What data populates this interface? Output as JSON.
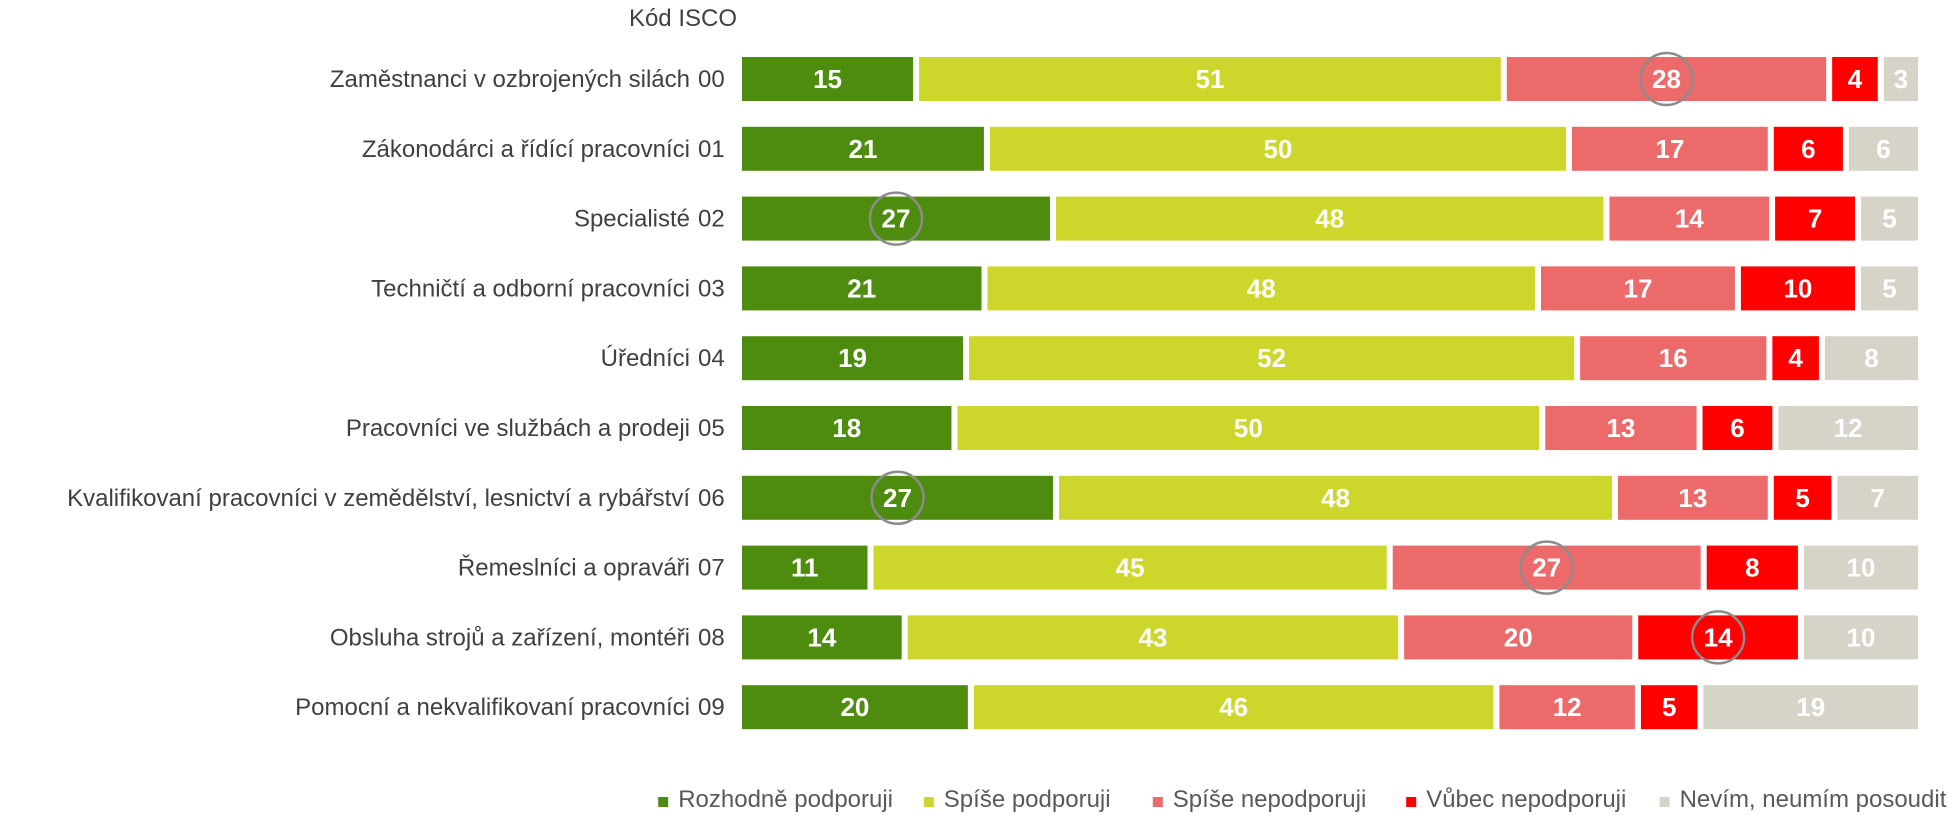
{
  "chart_data": {
    "type": "bar",
    "orientation": "horizontal",
    "stacked": "100%",
    "code_header": "Kód ISCO",
    "categories": [
      {
        "label": "Zaměstnanci v ozbrojených silách",
        "code": "00"
      },
      {
        "label": "Zákonodárci a řídící pracovníci",
        "code": "01"
      },
      {
        "label": "Specialisté",
        "code": "02"
      },
      {
        "label": "Techničtí a odborní pracovníci",
        "code": "03"
      },
      {
        "label": "Úředníci",
        "code": "04"
      },
      {
        "label": "Pracovníci ve službách a prodeji",
        "code": "05"
      },
      {
        "label": "Kvalifikovaní pracovníci v zemědělství, lesnictví a rybářství",
        "code": "06"
      },
      {
        "label": "Řemeslníci a opraváři",
        "code": "07"
      },
      {
        "label": "Obsluha strojů a zařízení, montéři",
        "code": "08"
      },
      {
        "label": "Pomocní a nekvalifikovaní pracovníci",
        "code": "09"
      }
    ],
    "series": [
      {
        "name": "Rozhodně podporuji",
        "color": "#4e8c10",
        "label_color": "#ffffff",
        "values": [
          15,
          21,
          27,
          21,
          19,
          18,
          27,
          11,
          14,
          20
        ]
      },
      {
        "name": "Spíše podporuji",
        "color": "#cdd62a",
        "label_color": "#ffffff",
        "values": [
          51,
          50,
          48,
          48,
          52,
          50,
          48,
          45,
          43,
          46
        ]
      },
      {
        "name": "Spíše nepodporuji",
        "color": "#ec6a6a",
        "label_color": "#ffffff",
        "values": [
          28,
          17,
          14,
          17,
          16,
          13,
          13,
          27,
          20,
          12
        ]
      },
      {
        "name": "Vůbec nepodporuji",
        "color": "#ff0000",
        "label_color": "#ffffff",
        "values": [
          4,
          6,
          7,
          10,
          4,
          6,
          5,
          8,
          14,
          5
        ]
      },
      {
        "name": "Nevím, neumím posoudit",
        "color": "#d6d3c8",
        "label_color": "#ffffff",
        "values": [
          3,
          6,
          5,
          5,
          8,
          12,
          7,
          10,
          10,
          19
        ]
      }
    ],
    "highlights": [
      {
        "category_index": 0,
        "series_index": 2
      },
      {
        "category_index": 2,
        "series_index": 0
      },
      {
        "category_index": 6,
        "series_index": 0
      },
      {
        "category_index": 7,
        "series_index": 2
      },
      {
        "category_index": 8,
        "series_index": 3
      }
    ],
    "legend_position": "bottom-right",
    "grid": false
  }
}
